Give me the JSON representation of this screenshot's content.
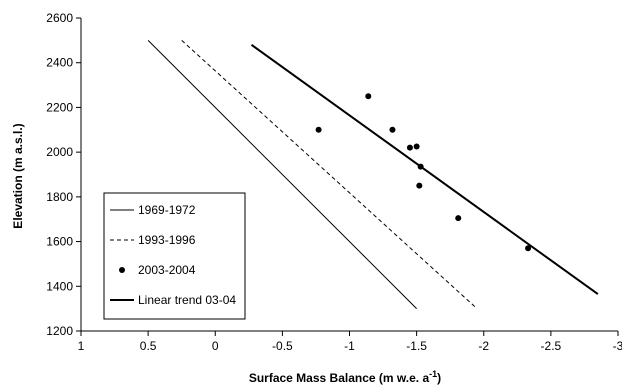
{
  "chart_data": {
    "type": "scatter",
    "xlabel": "Surface Mass Balance (m w.e. a",
    "xlabel_superscript": "-1",
    "xlabel_suffix": ")",
    "ylabel": "Elevation (m a.s.l.)",
    "xlim": [
      1,
      -3
    ],
    "ylim": [
      1200,
      2600
    ],
    "x_reversed": true,
    "x_ticks": [
      1,
      0.5,
      0,
      -0.5,
      -1,
      -1.5,
      -2,
      -2.5,
      -3
    ],
    "x_tick_labels": [
      "1",
      "0.5",
      "0",
      "-0.5",
      "-1",
      "-1.5",
      "-2",
      "-2.5",
      "-3"
    ],
    "y_ticks": [
      1200,
      1400,
      1600,
      1800,
      2000,
      2200,
      2400,
      2600
    ],
    "y_tick_labels": [
      "1200",
      "1400",
      "1600",
      "1800",
      "2000",
      "2200",
      "2400",
      "2600"
    ],
    "grid": false,
    "legend_position": "bottom-left",
    "series": [
      {
        "name": "1969-1972",
        "kind": "line",
        "style": "solid-thin",
        "color": "#000000",
        "points": [
          [
            0.5,
            2500
          ],
          [
            -1.5,
            1300
          ]
        ]
      },
      {
        "name": "1993-1996",
        "kind": "line",
        "style": "dashed",
        "color": "#000000",
        "points": [
          [
            0.25,
            2500
          ],
          [
            -1.95,
            1300
          ]
        ]
      },
      {
        "name": "2003-2004",
        "kind": "points",
        "style": "dot",
        "color": "#000000",
        "points": [
          [
            -0.77,
            2100
          ],
          [
            -1.14,
            2250
          ],
          [
            -1.32,
            2100
          ],
          [
            -1.45,
            2020
          ],
          [
            -1.5,
            2025
          ],
          [
            -1.53,
            1935
          ],
          [
            -1.52,
            1850
          ],
          [
            -1.81,
            1705
          ],
          [
            -2.33,
            1570
          ]
        ]
      },
      {
        "name": "Linear trend 03-04",
        "kind": "line",
        "style": "solid-thick",
        "color": "#000000",
        "points": [
          [
            -0.27,
            2480
          ],
          [
            -2.85,
            1365
          ]
        ]
      }
    ]
  }
}
